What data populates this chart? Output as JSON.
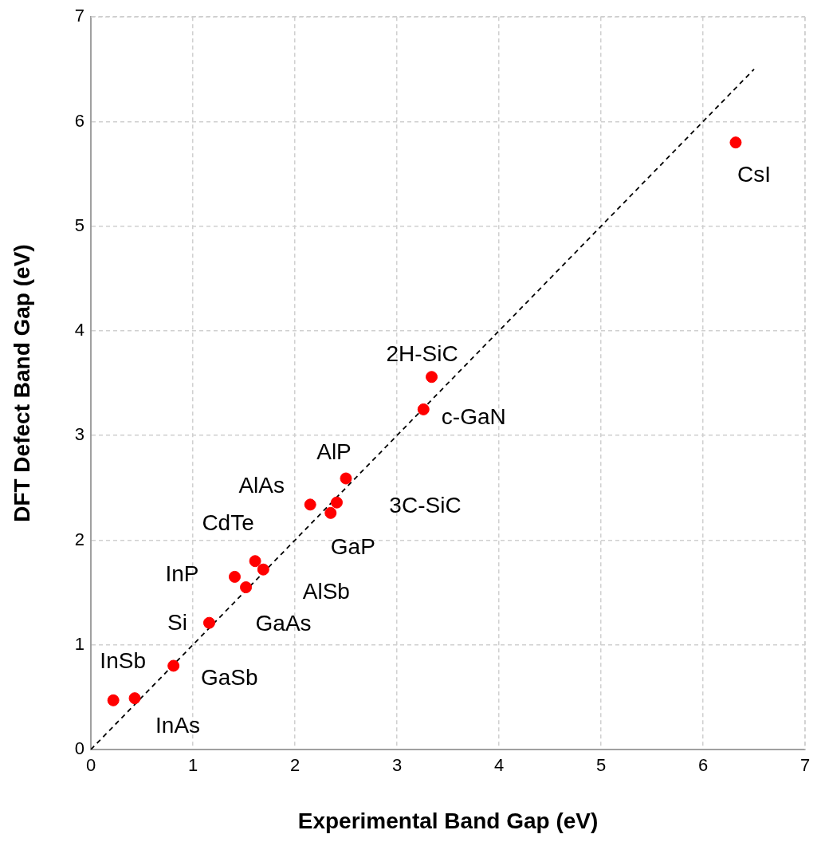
{
  "chart_data": {
    "type": "scatter",
    "xlabel": "Experimental Band Gap (eV)",
    "ylabel": "DFT Defect Band Gap (eV)",
    "xlim": [
      0,
      7
    ],
    "ylim": [
      0,
      7
    ],
    "xticks": [
      0,
      1,
      2,
      3,
      4,
      5,
      6,
      7
    ],
    "yticks": [
      0,
      1,
      2,
      3,
      4,
      5,
      6,
      7
    ],
    "grid": true,
    "legend": false,
    "marker": "circle",
    "series": [
      {
        "color": "#ff0000",
        "x": [
          0.22,
          0.43,
          0.81,
          1.16,
          1.41,
          1.52,
          1.61,
          1.69,
          2.15,
          2.35,
          2.41,
          2.5,
          3.26,
          3.34,
          6.32
        ],
        "values": [
          0.47,
          0.49,
          0.8,
          1.21,
          1.65,
          1.55,
          1.8,
          1.72,
          2.34,
          2.26,
          2.36,
          2.59,
          3.25,
          3.56,
          5.8
        ]
      },
      {
        "type": "line",
        "color": "#000000",
        "line_style": "dashed",
        "marker": "none",
        "x": [
          0,
          6.5
        ],
        "values": [
          0,
          6.5
        ]
      }
    ],
    "annotations": [
      {
        "text": "InSb",
        "x": 0.22,
        "y": 0.47
      },
      {
        "text": "InAs",
        "x": 0.43,
        "y": 0.49
      },
      {
        "text": "GaSb",
        "x": 0.81,
        "y": 0.8
      },
      {
        "text": "Si",
        "x": 1.16,
        "y": 1.21
      },
      {
        "text": "InP",
        "x": 1.41,
        "y": 1.65
      },
      {
        "text": "GaAs",
        "x": 1.52,
        "y": 1.55
      },
      {
        "text": "CdTe",
        "x": 1.61,
        "y": 1.8
      },
      {
        "text": "AlSb",
        "x": 1.69,
        "y": 1.72
      },
      {
        "text": "AlAs",
        "x": 2.15,
        "y": 2.34
      },
      {
        "text": "GaP",
        "x": 2.35,
        "y": 2.26
      },
      {
        "text": "3C-SiC",
        "x": 2.41,
        "y": 2.36
      },
      {
        "text": "AlP",
        "x": 2.5,
        "y": 2.59
      },
      {
        "text": "c-GaN",
        "x": 3.26,
        "y": 3.25
      },
      {
        "text": "2H-SiC",
        "x": 3.34,
        "y": 3.56
      },
      {
        "text": "CsI",
        "x": 6.32,
        "y": 5.8
      }
    ]
  }
}
